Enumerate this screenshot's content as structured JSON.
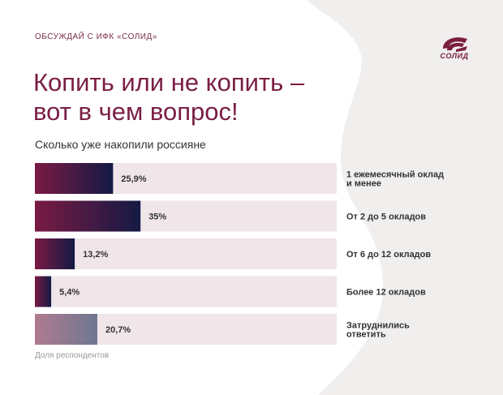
{
  "header": {
    "top_label": "ОБСУЖДАЙ С ИФК «СОЛИД»",
    "logo_text": "СОЛИД",
    "title_line1": "Копить или не копить –",
    "title_line2": "вот в чем вопрос!"
  },
  "chart_data": {
    "type": "bar",
    "orientation": "horizontal",
    "title": "Сколько уже накопили россияне",
    "categories": [
      [
        "1 ежемесячный оклад",
        "и менее"
      ],
      [
        "От 2 до 5 окладов"
      ],
      [
        "От 6 до 12 окладов"
      ],
      [
        "Более 12 окладов"
      ],
      [
        "Затруднились",
        "ответить"
      ]
    ],
    "values": [
      25.9,
      35,
      13.2,
      5.4,
      20.7
    ],
    "value_labels": [
      "25,9%",
      "35%",
      "13,2%",
      "5,4%",
      "20,7%"
    ],
    "xlim": [
      0,
      100
    ],
    "xlabel": "Доля респондентов",
    "unit": "%"
  },
  "colors": {
    "accent": "#7a1e45",
    "track": "#f0e6ea",
    "bar_start": "#7a1a43",
    "bar_end": "#131a44",
    "muted_start": "#b07a8f",
    "muted_end": "#6f7791",
    "blob": "#f1eeee"
  }
}
